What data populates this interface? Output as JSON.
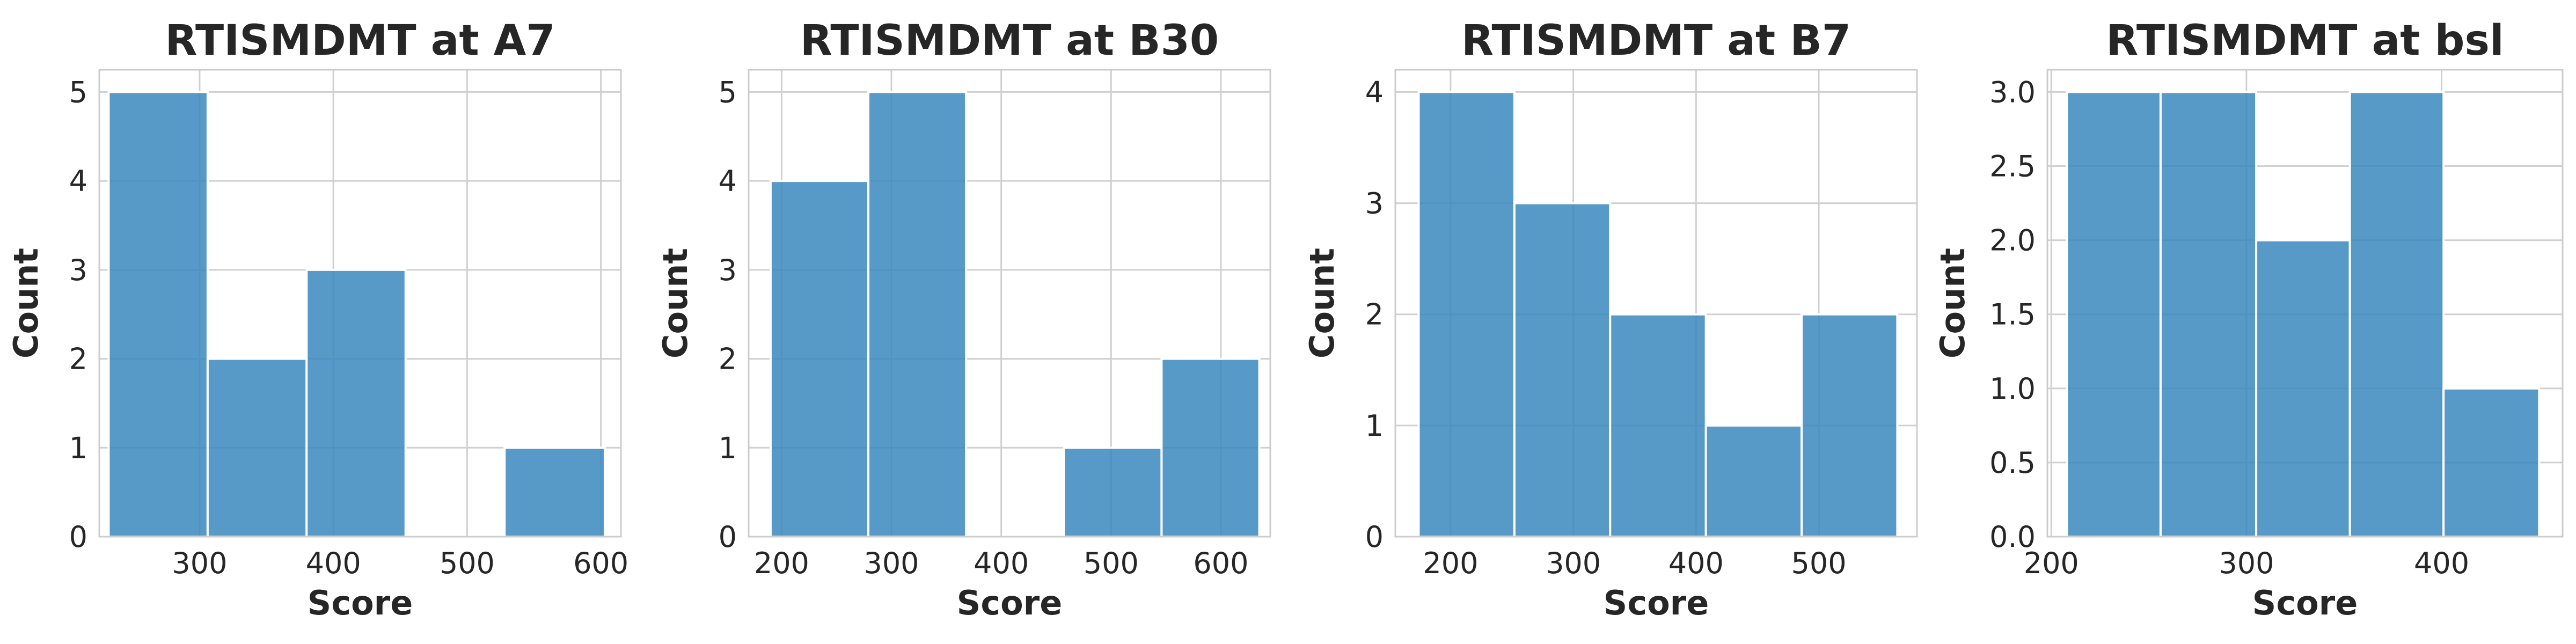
{
  "chart_data": [
    {
      "type": "bar",
      "title": "RTISMDMT at A7",
      "xlabel": "Score",
      "ylabel": "Count",
      "xlim": [
        225,
        615
      ],
      "ylim": [
        0,
        5.25
      ],
      "xticks": [
        300,
        400,
        500,
        600
      ],
      "yticks": [
        0,
        1,
        2,
        3,
        4,
        5
      ],
      "yticklabels": [
        "0",
        "1",
        "2",
        "3",
        "4",
        "5"
      ],
      "bins": [
        [
          232,
          306
        ],
        [
          306,
          380
        ],
        [
          380,
          454
        ],
        [
          454,
          528
        ],
        [
          528,
          603
        ]
      ],
      "values": [
        5,
        2,
        3,
        0,
        1
      ],
      "grid": true
    },
    {
      "type": "bar",
      "title": "RTISMDMT at B30",
      "xlabel": "Score",
      "ylabel": "Count",
      "xlim": [
        170,
        645
      ],
      "ylim": [
        0,
        5.25
      ],
      "xticks": [
        200,
        300,
        400,
        500,
        600
      ],
      "yticks": [
        0,
        1,
        2,
        3,
        4,
        5
      ],
      "yticklabels": [
        "0",
        "1",
        "2",
        "3",
        "4",
        "5"
      ],
      "bins": [
        [
          190,
          279
        ],
        [
          279,
          368
        ],
        [
          368,
          457
        ],
        [
          457,
          546
        ],
        [
          546,
          635
        ]
      ],
      "values": [
        4,
        5,
        0,
        1,
        2
      ],
      "grid": true
    },
    {
      "type": "bar",
      "title": "RTISMDMT at B7",
      "xlabel": "Score",
      "ylabel": "Count",
      "xlim": [
        155,
        580
      ],
      "ylim": [
        0,
        4.2
      ],
      "xticks": [
        200,
        300,
        400,
        500
      ],
      "yticks": [
        0,
        1,
        2,
        3,
        4
      ],
      "yticklabels": [
        "0",
        "1",
        "2",
        "3",
        "4"
      ],
      "bins": [
        [
          174,
          252
        ],
        [
          252,
          330
        ],
        [
          330,
          408
        ],
        [
          408,
          486
        ],
        [
          486,
          564
        ]
      ],
      "values": [
        4,
        3,
        2,
        1,
        2
      ],
      "grid": true
    },
    {
      "type": "bar",
      "title": "RTISMDMT at bsl",
      "xlabel": "Score",
      "ylabel": "Count",
      "xlim": [
        198,
        462
      ],
      "ylim": [
        0,
        3.15
      ],
      "xticks": [
        200,
        300,
        400
      ],
      "yticks": [
        0,
        0.5,
        1,
        1.5,
        2,
        2.5,
        3
      ],
      "yticklabels": [
        "0.0",
        "0.5",
        "1.0",
        "1.5",
        "2.0",
        "2.5",
        "3.0"
      ],
      "bins": [
        [
          208,
          256
        ],
        [
          256,
          305
        ],
        [
          305,
          353
        ],
        [
          353,
          401
        ],
        [
          401,
          450
        ]
      ],
      "values": [
        3,
        3,
        2,
        3,
        1
      ],
      "grid": true
    }
  ]
}
